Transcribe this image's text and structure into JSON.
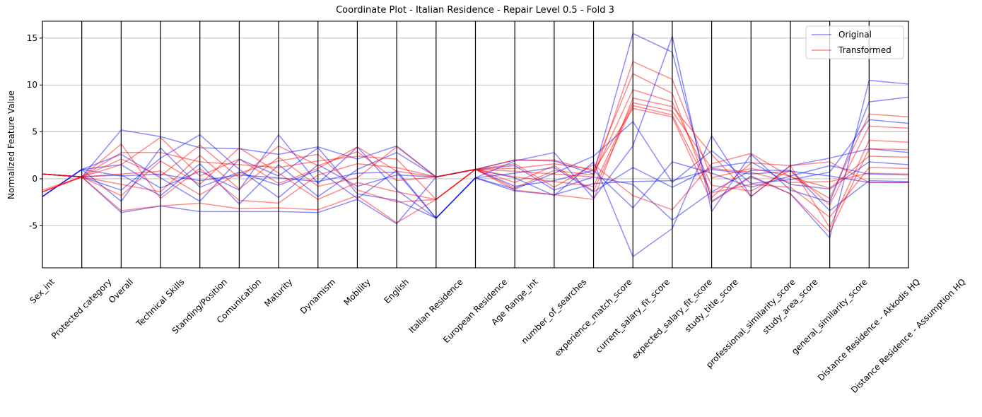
{
  "chart_data": {
    "type": "parallel",
    "title": "Coordinate Plot - Italian Residence - Repair Level 0.5 - Fold 3",
    "y_label": "Normalized Feature Value",
    "categories": [
      "Sex_int",
      "Protected category",
      "Overall",
      "Technical Skills",
      "Standing/Position",
      "Comunication",
      "Maturity",
      "Dynamism",
      "Mobility",
      "English",
      "Italian Residence",
      "European Residence",
      "Age Range_int",
      "number_of_searches",
      "experience_match_score",
      "current_salary_fit_score",
      "expected_salary_fit_score",
      "study_title_score",
      "professional_similarity_score",
      "study_area_score",
      "general_similarity_score",
      "Distance Residence - Akkodis HQ",
      "Distance Residence - Assumption HQ"
    ],
    "ylim": [
      -9.5,
      16.8
    ],
    "yticks": [
      -5,
      0,
      5,
      10,
      15
    ],
    "grid": true,
    "legend": "upper right",
    "series": [
      {
        "name": "Original",
        "color": "#0000ff",
        "values": [
          [
            -1.9,
            1,
            0.3,
            0.5,
            -0.2,
            0.4,
            0.1,
            -0.3,
            0.6,
            0.7,
            -4.2,
            0.1,
            -1.3,
            -1.7,
            -0.5,
            -0.3,
            -0.2,
            1,
            0.5,
            0.8,
            0.3,
            -0.4,
            -0.4
          ],
          [
            0.5,
            0.2,
            5.2,
            4.5,
            3.3,
            3.2,
            2.6,
            3.4,
            2.1,
            3.5,
            0.2,
            1,
            2,
            1.9,
            0.5,
            15.5,
            13.5,
            -2.4,
            0.3,
            -1.6,
            -6.3,
            10.5,
            10.1
          ],
          [
            0.5,
            0.2,
            -3.6,
            -2.9,
            -3.5,
            -3.5,
            -3.5,
            -3.6,
            -2.2,
            -4.8,
            0.2,
            1,
            0.1,
            -1.8,
            1.8,
            -8.3,
            -5.3,
            4.6,
            -1.9,
            1.4,
            2.2,
            3.2,
            2.8
          ],
          [
            -1.9,
            1,
            1.5,
            -1,
            0.8,
            -1.2,
            4.7,
            -0.5,
            3.4,
            -1.2,
            -4.2,
            0.1,
            1.9,
            2.8,
            -2.1,
            3.5,
            15.2,
            -3.5,
            2.6,
            -1.2,
            -2.5,
            8.2,
            8.7
          ],
          [
            0.5,
            0.2,
            -1.2,
            2.2,
            4.7,
            1,
            -2,
            1.5,
            -0.8,
            0.4,
            0.2,
            1,
            -0.8,
            -0.2,
            0.9,
            -3.1,
            1.8,
            0.6,
            -0.9,
            0.3,
            1.4,
            0.5,
            0.4
          ],
          [
            -1.9,
            1,
            2.6,
            0.1,
            -2.4,
            2.1,
            0.3,
            3.3,
            -1.6,
            -2.3,
            -4.2,
            0.1,
            0.6,
            1.2,
            -1.4,
            1.2,
            -0.9,
            1.2,
            1.8,
            -0.6,
            -1.1,
            1.8,
            1.5
          ],
          [
            0.5,
            0.2,
            0.4,
            -1.8,
            1.6,
            -2.7,
            1.5,
            -1.9,
            1,
            2.8,
            0.2,
            1,
            1.4,
            -1.2,
            0.2,
            -0.6,
            -4.4,
            -1.4,
            0.9,
            0.9,
            -3.4,
            -0.2,
            -0.3
          ],
          [
            -1.9,
            1,
            -2.4,
            3.3,
            -0.9,
            0.7,
            -0.7,
            0.9,
            -2.1,
            0.9,
            -4.2,
            0.1,
            -1.1,
            0.6,
            2.4,
            6.1,
            -0.4,
            3,
            -0.5,
            -0.1,
            0.7,
            6.3,
            5.9
          ]
        ]
      },
      {
        "name": "Transformed",
        "color": "#ff0000",
        "values": [
          [
            -1.4,
            0.2,
            2.8,
            2.8,
            1.8,
            1.5,
            1.2,
            1.9,
            2.4,
            2.1,
            -2.2,
            1,
            2,
            2,
            0.8,
            7.5,
            6.6,
            -2.5,
            0.2,
            -1.6,
            -5.7,
            3.2,
            3.1
          ],
          [
            -1.2,
            0.2,
            -3.4,
            -2.9,
            -2.6,
            -3.2,
            -3.1,
            -3.3,
            -1.8,
            -4.7,
            -2.2,
            1,
            -1.2,
            -1.7,
            -2.2,
            8.6,
            7.7,
            2.6,
            -1.9,
            1.4,
            1.8,
            -0.4,
            -0.4
          ],
          [
            0.5,
            0.2,
            1.5,
            4.4,
            0.3,
            2.1,
            -0.5,
            1.1,
            3.4,
            0.8,
            0.2,
            1,
            0.8,
            0.5,
            0.2,
            12.5,
            10.6,
            0.1,
            1.1,
            0.3,
            -2.1,
            6.9,
            6.6
          ],
          [
            0.5,
            0.2,
            -0.6,
            -1.4,
            2.5,
            -1.1,
            2.3,
            -0.8,
            0.1,
            3.4,
            0.2,
            1,
            -0.4,
            1.4,
            -1.3,
            7.8,
            6.8,
            -1.5,
            -0.6,
            -0.9,
            -4.1,
            1.2,
            1.1
          ],
          [
            -1.4,
            0.2,
            0.5,
            0.8,
            -1.7,
            0.6,
            1.9,
            2.6,
            -1.2,
            -2.5,
            -2.2,
            1,
            1.6,
            -0.9,
            1.5,
            -1.8,
            -3.3,
            1.6,
            2.7,
            0.2,
            -1,
            2.4,
            2.3
          ],
          [
            0.5,
            0.2,
            3.7,
            -2.1,
            1.1,
            -2.3,
            -2.6,
            0.4,
            1.6,
            1.2,
            0.2,
            1,
            -1,
            0.9,
            0.4,
            9.5,
            8.2,
            -0.7,
            -1.3,
            0.9,
            -2.8,
            5.6,
            5.4
          ],
          [
            -1.4,
            0.2,
            -1.8,
            1.9,
            -0.6,
            3.3,
            0.6,
            -2.2,
            -0.4,
            -1.4,
            -2.2,
            1,
            0.2,
            -0.3,
            -0.8,
            8.1,
            7.2,
            1.1,
            0.7,
            -0.4,
            -0.3,
            0.6,
            0.5
          ],
          [
            0.5,
            0.2,
            2.1,
            0.3,
            3.6,
            0.1,
            3.5,
            1.4,
            2.9,
            -0.2,
            0.2,
            1,
            1.1,
            1.6,
            1,
            11.2,
            9.1,
            -2,
            1.7,
            1.4,
            -5.2,
            4.1,
            3.9
          ]
        ]
      }
    ]
  }
}
